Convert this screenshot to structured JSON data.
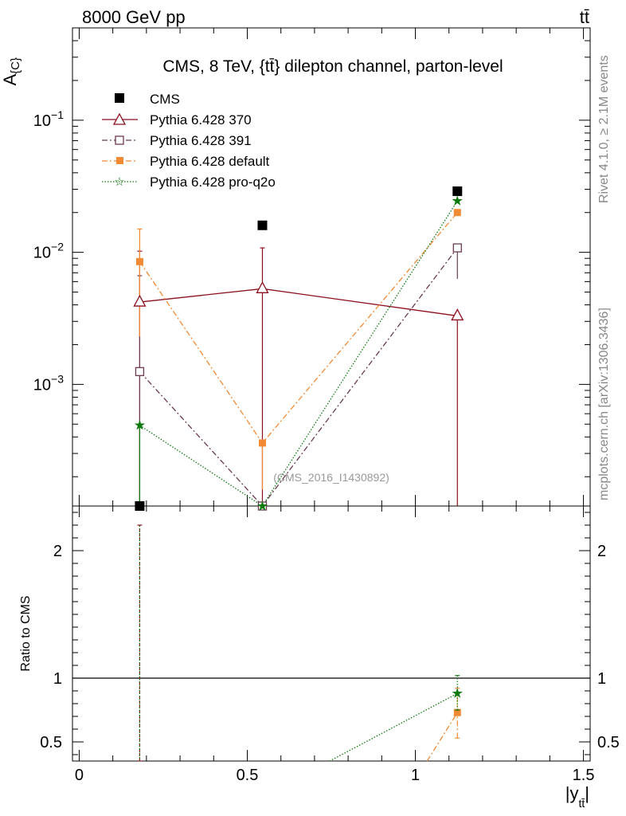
{
  "header": {
    "left": "8000 GeV pp",
    "right": "tt̄"
  },
  "side_text": {
    "rivet": "Rivet 4.1.0, ≥ 2.1M events",
    "mcplots": "mcplots.cern.ch [arXiv:1306.3436]"
  },
  "watermark": "(CMS_2016_I1430892)",
  "colors": {
    "cms": "#000000",
    "p370": "#8b0f1e",
    "p391": "#6b3a52",
    "pdefault": "#f28a33",
    "pq2o": "#0d7a0d"
  },
  "chart_data": [
    {
      "type": "line",
      "panel": "main",
      "title": "CMS, 8 TeV, {tt̄} dilepton channel, parton-level",
      "ylabel": "A_{C}",
      "yscale": "log",
      "ylim": [
        0.00012,
        0.5
      ],
      "xlim": [
        -0.02,
        1.52
      ],
      "ytick_labels": [
        "10^-3",
        "10^-2",
        "10^-1"
      ],
      "legend_position": "top-left",
      "x": [
        0.18,
        0.545,
        1.125
      ],
      "series": [
        {
          "name": "CMS",
          "style": "marker",
          "values": [
            0.00012,
            0.016,
            0.029
          ]
        },
        {
          "name": "Pythia 6.428 370",
          "style": "solid",
          "values": [
            0.0042,
            0.0053,
            0.0033
          ],
          "err_lo": [
            0.0041,
            0.0052,
            0.0032
          ],
          "err_hi": [
            0.006,
            0.0055,
            0.0
          ]
        },
        {
          "name": "Pythia 6.428 391",
          "style": "dashdot",
          "values": [
            0.00125,
            0.00012,
            0.0108
          ],
          "err_lo": [
            0.0012,
            0.0,
            0.0045
          ],
          "err_hi": [
            0.0054,
            0.0,
            0.0
          ]
        },
        {
          "name": "Pythia 6.428 default",
          "style": "dashdot",
          "values": [
            0.0085,
            0.00036,
            0.02
          ],
          "err_lo": [
            0.0062,
            0.0002,
            0.0
          ],
          "err_hi": [
            0.0065,
            0.0,
            0.0
          ]
        },
        {
          "name": "Pythia 6.428 pro-q2o",
          "style": "dotted",
          "values": [
            0.00049,
            0.00012,
            0.0245
          ],
          "err_lo": [
            0.00048,
            0.0,
            0.0
          ],
          "err_hi": [
            0.0,
            0.0,
            0.0
          ]
        }
      ]
    },
    {
      "type": "line",
      "panel": "ratio",
      "ylabel": "Ratio to CMS",
      "xlabel": "|y_{tt̄}|",
      "ylim": [
        0.35,
        2.35
      ],
      "xlim": [
        -0.02,
        1.52
      ],
      "yticks": [
        0.5,
        1,
        2
      ],
      "ytick_labels": [
        "0.5",
        "1",
        "2"
      ],
      "xticks": [
        0,
        0.5,
        1,
        1.5
      ],
      "xtick_labels": [
        "0",
        "0.5",
        "1",
        "1.5"
      ],
      "reference_line": 1,
      "series": [
        {
          "name": "Pythia 6.428 default",
          "style": "dashdot",
          "points": [
            [
              1.035,
              0.35
            ],
            [
              1.125,
              0.73
            ]
          ],
          "err_lo": [
            0,
            0.53
          ],
          "err_hi": [
            0,
            0.92
          ]
        },
        {
          "name": "Pythia 6.428 pro-q2o",
          "style": "dotted",
          "points": [
            [
              0.745,
              0.35
            ],
            [
              1.125,
              0.88
            ]
          ],
          "err_lo": [
            0,
            0.75
          ],
          "err_hi": [
            0,
            1.02
          ]
        },
        {
          "name": "CMS uncertainty",
          "style": "errorbar",
          "points": [
            [
              0.18,
              1.78
            ]
          ],
          "err_lo": [
            0.35
          ],
          "err_hi": [
            2.2
          ]
        }
      ]
    }
  ]
}
